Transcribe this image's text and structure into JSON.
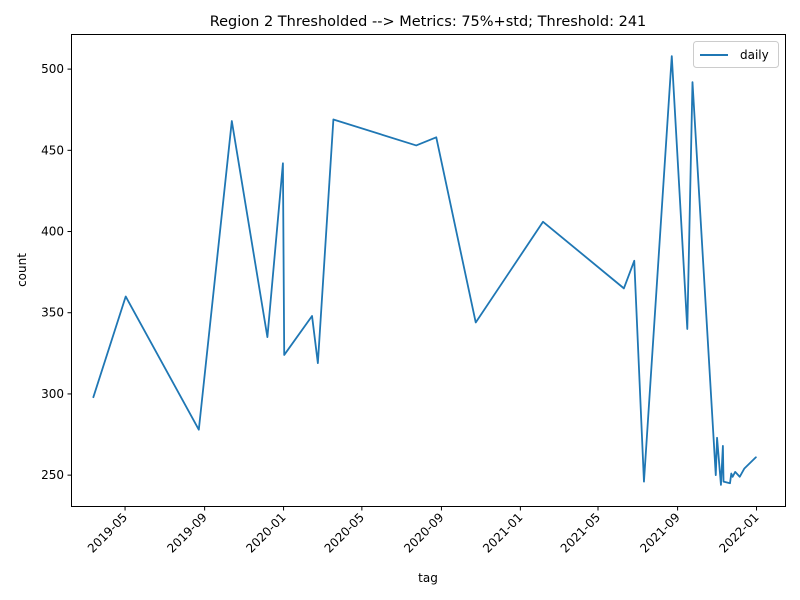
{
  "chart_data": {
    "type": "line",
    "title": "Region 2 Thresholded --> Metrics: 75%+std; Threshold: 241",
    "xlabel": "tag",
    "ylabel": "count",
    "x_axis_type": "date",
    "xlim": [
      "2019-02-08",
      "2022-02-14"
    ],
    "ylim": [
      231,
      521
    ],
    "x_ticks": [
      "2019-05-01",
      "2019-09-01",
      "2020-01-01",
      "2020-05-01",
      "2020-09-01",
      "2021-01-01",
      "2021-05-01",
      "2021-09-01",
      "2022-01-01"
    ],
    "x_tick_labels": [
      "2019-05",
      "2019-09",
      "2020-01",
      "2020-05",
      "2020-09",
      "2021-01",
      "2021-05",
      "2021-09",
      "2022-01"
    ],
    "y_ticks": [
      250,
      300,
      350,
      400,
      450,
      500
    ],
    "y_tick_labels": [
      "250",
      "300",
      "350",
      "400",
      "450",
      "500"
    ],
    "grid": false,
    "legend_position": "top-right",
    "series": [
      {
        "name": "daily",
        "color": "#1f77b4",
        "points": [
          {
            "x": "2019-03-13",
            "y": 298
          },
          {
            "x": "2019-05-02",
            "y": 360
          },
          {
            "x": "2019-08-23",
            "y": 278
          },
          {
            "x": "2019-10-13",
            "y": 468
          },
          {
            "x": "2019-12-07",
            "y": 335
          },
          {
            "x": "2019-12-31",
            "y": 442
          },
          {
            "x": "2020-01-02",
            "y": 324
          },
          {
            "x": "2020-02-14",
            "y": 348
          },
          {
            "x": "2020-02-23",
            "y": 319
          },
          {
            "x": "2020-03-18",
            "y": 469
          },
          {
            "x": "2020-07-24",
            "y": 453
          },
          {
            "x": "2020-08-24",
            "y": 458
          },
          {
            "x": "2020-10-24",
            "y": 344
          },
          {
            "x": "2021-02-05",
            "y": 406
          },
          {
            "x": "2021-06-10",
            "y": 365
          },
          {
            "x": "2021-06-26",
            "y": 382
          },
          {
            "x": "2021-07-11",
            "y": 246
          },
          {
            "x": "2021-08-23",
            "y": 508
          },
          {
            "x": "2021-09-16",
            "y": 340
          },
          {
            "x": "2021-09-24",
            "y": 492
          },
          {
            "x": "2021-10-30",
            "y": 250
          },
          {
            "x": "2021-11-01",
            "y": 273
          },
          {
            "x": "2021-11-07",
            "y": 244
          },
          {
            "x": "2021-11-10",
            "y": 268
          },
          {
            "x": "2021-11-11",
            "y": 246
          },
          {
            "x": "2021-11-21",
            "y": 245
          },
          {
            "x": "2021-11-23",
            "y": 251
          },
          {
            "x": "2021-11-25",
            "y": 249
          },
          {
            "x": "2021-11-29",
            "y": 252
          },
          {
            "x": "2021-12-06",
            "y": 249
          },
          {
            "x": "2021-12-13",
            "y": 254
          },
          {
            "x": "2021-12-31",
            "y": 261
          }
        ]
      }
    ]
  }
}
